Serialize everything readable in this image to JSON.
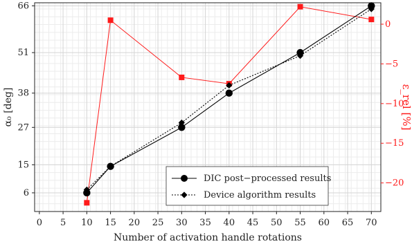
{
  "chart_data": {
    "type": "line",
    "xlabel": "Number of activation handle rotations",
    "ylabel_left": "α₀ [deg]",
    "ylabel_right": "ε_rel [%]",
    "x_ticks": [
      0,
      5,
      10,
      15,
      20,
      25,
      30,
      35,
      40,
      45,
      50,
      55,
      60,
      65,
      70
    ],
    "xlim": [
      -1,
      72
    ],
    "y_left_ticks": [
      6,
      15,
      27,
      38,
      51,
      66
    ],
    "y_left_lim": [
      0,
      67
    ],
    "y_right_ticks": [
      0,
      -5,
      -10,
      -15,
      -20
    ],
    "y_right_lim": [
      -23.6,
      2.7
    ],
    "grid": true,
    "legend_position": "bottom-right",
    "series": [
      {
        "name": "DIC post−processed results",
        "axis": "left",
        "color": "#000000",
        "marker": "circle",
        "line": "solid",
        "x": [
          10,
          15,
          30,
          40,
          55,
          70
        ],
        "y": [
          6,
          14.5,
          27,
          38,
          51,
          66
        ]
      },
      {
        "name": "Device algorithm results",
        "axis": "left",
        "color": "#000000",
        "marker": "diamond",
        "line": "dotted",
        "x": [
          10,
          15,
          30,
          40,
          55,
          70
        ],
        "y": [
          7,
          14.5,
          28.5,
          40.5,
          50,
          65
        ]
      },
      {
        "axis": "right",
        "color": "#ff1a1a",
        "marker": "square",
        "line": "solid",
        "x": [
          10,
          15,
          30,
          40,
          55,
          70
        ],
        "y": [
          -22.5,
          0.5,
          -6.7,
          -7.5,
          2.2,
          0.6
        ]
      }
    ]
  }
}
